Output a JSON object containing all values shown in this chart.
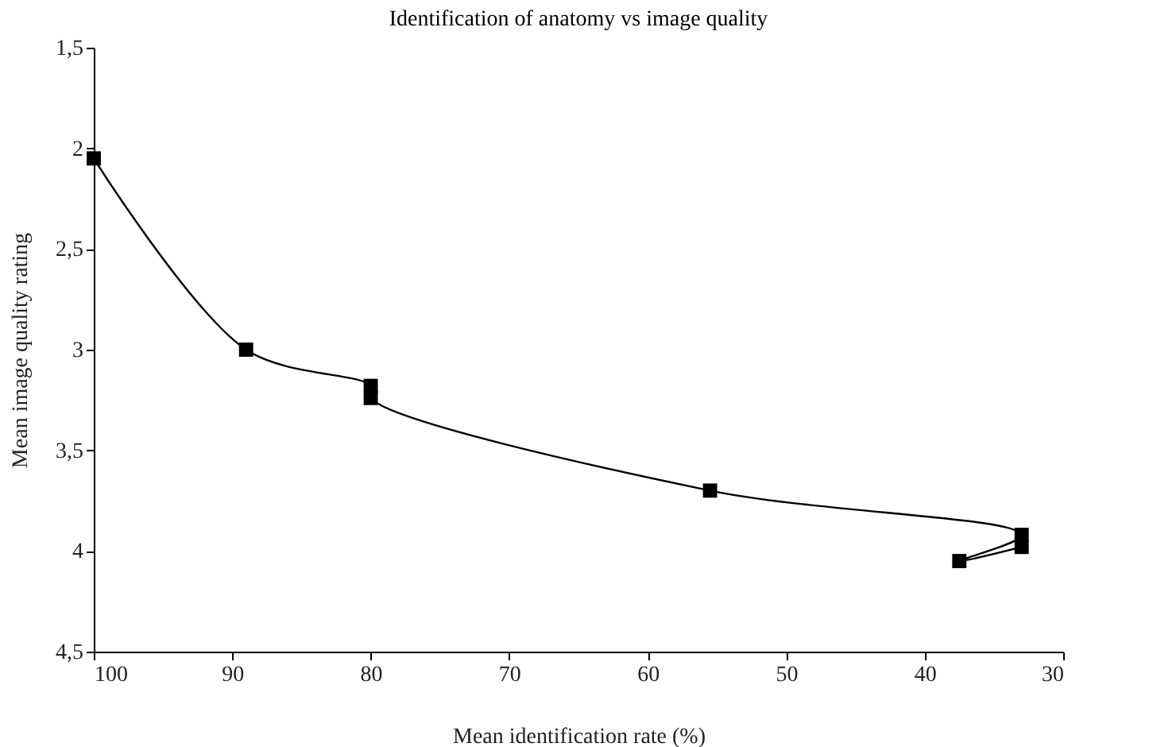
{
  "chart_data": {
    "type": "line",
    "title": "Identification of anatomy vs image quality",
    "xlabel": "Mean identification rate (%)",
    "ylabel": "Mean image quality rating",
    "x": [
      100,
      89,
      80,
      80,
      55.5,
      33,
      37.5,
      33
    ],
    "series": [
      {
        "color": "#000000",
        "values": [
          2.05,
          3.0,
          3.18,
          3.24,
          3.7,
          3.92,
          4.05,
          3.98
        ]
      }
    ],
    "xlim": [
      100,
      30
    ],
    "xticks": [
      100,
      90,
      80,
      70,
      60,
      50,
      40,
      30
    ],
    "ylim": [
      4.5,
      1.5
    ],
    "yticks": [
      {
        "value": 1.5,
        "label": "1,5"
      },
      2,
      {
        "value": 2.5,
        "label": "2,5"
      },
      3,
      {
        "value": 3.5,
        "label": "3,5"
      },
      4,
      {
        "value": 4.5,
        "label": "4,5"
      }
    ],
    "marker": "square",
    "line_style": "solid",
    "grid": false
  }
}
